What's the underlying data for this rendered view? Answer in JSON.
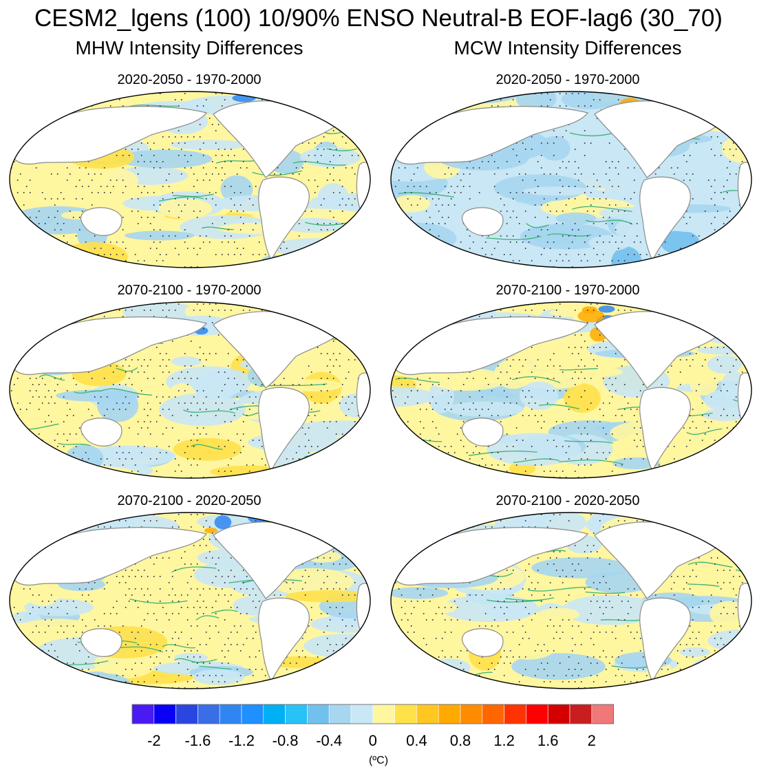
{
  "figure": {
    "title": "CESM2_lgens (100) 10/90% ENSO Neutral-B EOF-lag6 (30_70)",
    "columns": [
      {
        "title": "MHW Intensity Differences"
      },
      {
        "title": "MCW Intensity Differences"
      }
    ],
    "units": "(ºC)"
  },
  "chart_data": {
    "type": "heatmap",
    "projection": "Robinson (Pacific-centered)",
    "variable": "Intensity difference",
    "panels": [
      {
        "column": "MHW Intensity Differences",
        "title": "2020-2050 - 1970-2000",
        "tone": "yellow",
        "warm": 0.58,
        "seed": 11
      },
      {
        "column": "MCW Intensity Differences",
        "title": "2020-2050 - 1970-2000",
        "tone": "blue",
        "warm": 0.42,
        "seed": 23
      },
      {
        "column": "MHW Intensity Differences",
        "title": "2070-2100 - 1970-2000",
        "tone": "mixed",
        "warm": 0.5,
        "seed": 37
      },
      {
        "column": "MCW Intensity Differences",
        "title": "2070-2100 - 1970-2000",
        "tone": "yellow",
        "warm": 0.55,
        "seed": 51
      },
      {
        "column": "MHW Intensity Differences",
        "title": "2070-2100 - 2020-2050",
        "tone": "mixed",
        "warm": 0.5,
        "seed": 67
      },
      {
        "column": "MCW Intensity Differences",
        "title": "2070-2100 - 2020-2050",
        "tone": "yellow",
        "warm": 0.6,
        "seed": 79
      }
    ],
    "colorbar": {
      "colors": [
        "#4a1af2",
        "#0a00f5",
        "#2a46e0",
        "#3a6ee6",
        "#2f86f0",
        "#1e90ff",
        "#00b0f5",
        "#29c2f6",
        "#72c0ee",
        "#a6d6f0",
        "#c9e7f5",
        "#fff6a0",
        "#ffe14a",
        "#ffc720",
        "#ffaa00",
        "#ff8c00",
        "#ff6600",
        "#ff3300",
        "#ff0000",
        "#d40000",
        "#c81e1e",
        "#f07878"
      ],
      "tick_labels": [
        "-2",
        "-1.6",
        "-1.2",
        "-0.8",
        "-0.4",
        "0",
        "0.4",
        "0.8",
        "1.2",
        "1.6",
        "2"
      ]
    },
    "legend_placement": "bottom",
    "stippling": "dots"
  }
}
